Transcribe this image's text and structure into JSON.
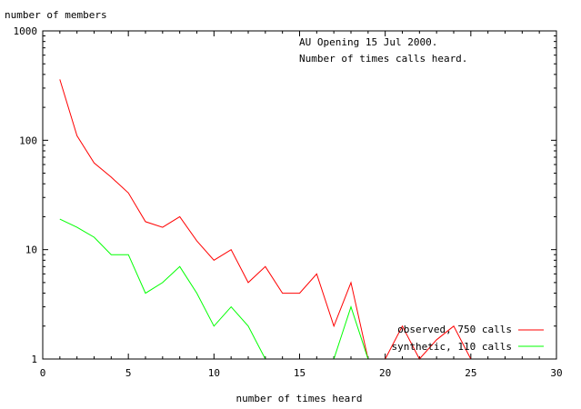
{
  "chart_data": {
    "type": "line",
    "title_lines": [
      "AU Opening 15 Jul 2000.",
      "Number of times calls heard."
    ],
    "xlabel": "number of times heard",
    "ylabel": "number of members",
    "xlim": [
      0,
      30
    ],
    "ylim": [
      1,
      1000
    ],
    "y_scale": "log",
    "x_ticks": [
      0,
      5,
      10,
      15,
      20,
      25,
      30
    ],
    "y_ticks": [
      "1",
      "10",
      "100",
      "1000"
    ],
    "legend_position": "bottom-right",
    "series": [
      {
        "name": "observed, 750 calls",
        "color": "#ff0000",
        "x": [
          1,
          2,
          3,
          4,
          5,
          6,
          7,
          8,
          9,
          10,
          11,
          12,
          13,
          14,
          15,
          16,
          17,
          18,
          19,
          20,
          21,
          22,
          23,
          24,
          25,
          26,
          27,
          28,
          29,
          30
        ],
        "y": [
          360,
          110,
          62,
          46,
          33,
          18,
          16,
          20,
          12,
          8,
          10,
          5,
          7,
          4,
          4,
          6,
          2,
          5,
          1,
          1,
          2,
          1,
          1.5,
          2,
          1,
          1,
          1,
          1,
          1,
          1
        ]
      },
      {
        "name": "synthetic, 110 calls",
        "color": "#00ff00",
        "x": [
          1,
          2,
          3,
          4,
          5,
          6,
          7,
          8,
          9,
          10,
          11,
          12,
          13,
          14,
          15,
          16,
          17,
          18,
          19,
          20,
          21,
          22,
          23,
          24,
          25,
          26,
          27,
          28,
          29,
          30
        ],
        "y": [
          19,
          16,
          13,
          9,
          9,
          4,
          5,
          7,
          4,
          2,
          3,
          2,
          1,
          1,
          1,
          1,
          1,
          3,
          1,
          1,
          1,
          1,
          1,
          1,
          1,
          1,
          1,
          1,
          1,
          1
        ]
      }
    ]
  }
}
